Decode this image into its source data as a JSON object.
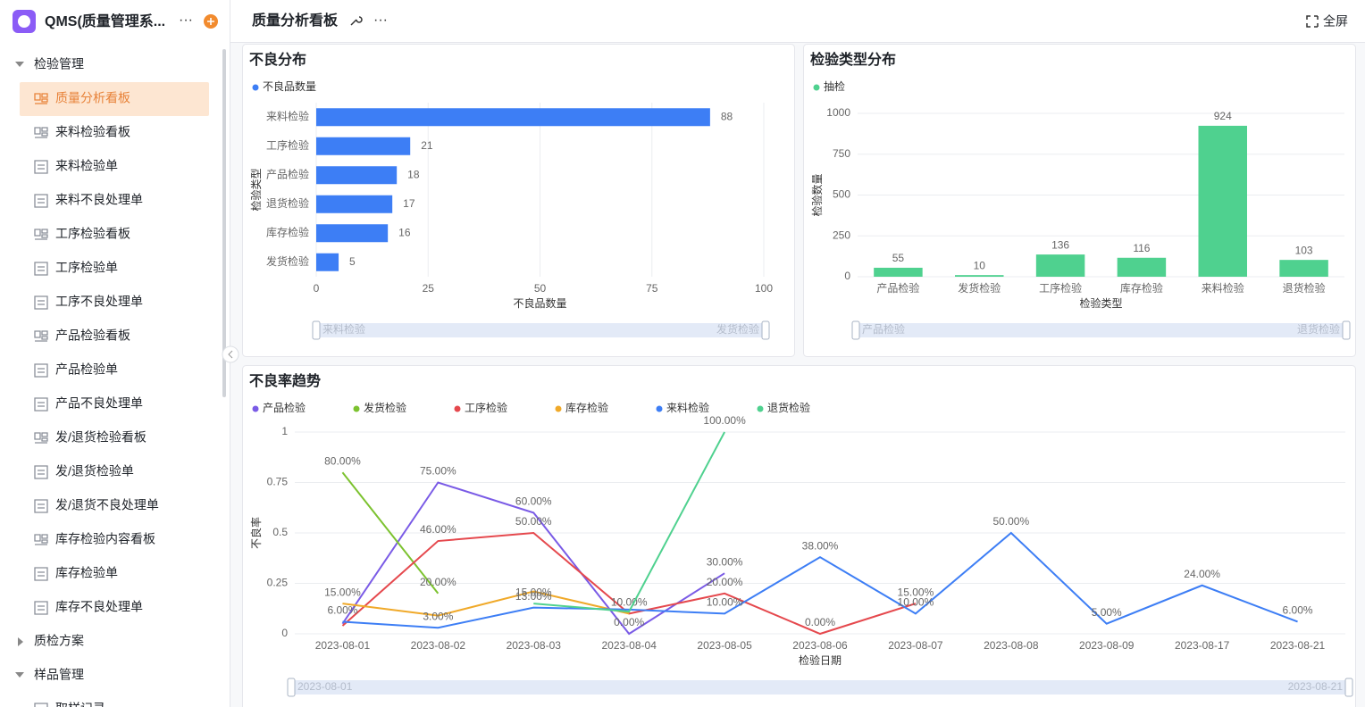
{
  "sidebar": {
    "app_title": "QMS(质量管理系...",
    "groups": [
      {
        "label": "检验管理",
        "items": [
          "质量分析看板",
          "来料检验看板",
          "来料检验单",
          "来料不良处理单",
          "工序检验看板",
          "工序检验单",
          "工序不良处理单",
          "产品检验看板",
          "产品检验单",
          "产品不良处理单",
          "发/退货检验看板",
          "发/退货检验单",
          "发/退货不良处理单",
          "库存检验内容看板",
          "库存检验单",
          "库存不良处理单"
        ]
      },
      {
        "label": "质检方案"
      },
      {
        "label": "样品管理",
        "items": [
          "取样记录"
        ]
      }
    ]
  },
  "header": {
    "title": "质量分析看板",
    "fullscreen": "全屏"
  },
  "chart_data": [
    {
      "type": "bar",
      "horizontal": true,
      "title": "不良分布",
      "categories": [
        "来料检验",
        "工序检验",
        "产品检验",
        "退货检验",
        "库存检验",
        "发货检验"
      ],
      "series": [
        {
          "name": "不良品数量",
          "color": "#3d7ef5",
          "values": [
            88,
            21,
            18,
            17,
            16,
            5
          ]
        }
      ],
      "xlim": [
        0,
        100
      ],
      "xticks": [
        0,
        25,
        50,
        75,
        100
      ],
      "xlabel": "不良品数量",
      "ylabel": "检验类型",
      "grid": true
    },
    {
      "type": "bar",
      "title": "检验类型分布",
      "categories": [
        "产品检验",
        "发货检验",
        "工序检验",
        "库存检验",
        "来料检验",
        "退货检验"
      ],
      "series": [
        {
          "name": "抽检",
          "color": "#4fd18f",
          "values": [
            55,
            10,
            136,
            116,
            924,
            103
          ]
        }
      ],
      "ylim": [
        0,
        1000
      ],
      "yticks": [
        0,
        250,
        500,
        750,
        1000
      ],
      "xlabel": "检验类型",
      "ylabel": "检验数量",
      "grid": true
    },
    {
      "type": "line",
      "title": "不良率趋势",
      "x": [
        "2023-08-01",
        "2023-08-02",
        "2023-08-03",
        "2023-08-04",
        "2023-08-05",
        "2023-08-06",
        "2023-08-07",
        "2023-08-08",
        "2023-08-09",
        "2023-08-17",
        "2023-08-21"
      ],
      "series": [
        {
          "name": "产品检验",
          "color": "#7a5be6",
          "values": [
            0.05,
            0.75,
            0.6,
            0,
            0.3,
            null,
            null,
            null,
            null,
            null,
            null
          ],
          "value_labels": [
            null,
            "75.00%",
            "60.00%",
            "0.00%",
            "30.00%",
            null,
            null,
            null,
            null,
            null,
            null
          ]
        },
        {
          "name": "发货检验",
          "color": "#7cc22f",
          "values": [
            0.8,
            0.2,
            null,
            null,
            null,
            null,
            null,
            null,
            null,
            null,
            null
          ],
          "value_labels": [
            "80.00%",
            "20.00%",
            null,
            null,
            null,
            null,
            null,
            null,
            null,
            null,
            null
          ]
        },
        {
          "name": "工序检验",
          "color": "#e5484d",
          "values": [
            0.04,
            0.46,
            0.5,
            0.1,
            0.2,
            0,
            0.15,
            null,
            null,
            null,
            null
          ],
          "value_labels": [
            null,
            "46.00%",
            "50.00%",
            null,
            "20.00%",
            "0.00%",
            "15.00%",
            null,
            null,
            null,
            null
          ]
        },
        {
          "name": "库存检验",
          "color": "#f0a929",
          "values": [
            0.15,
            0.09,
            0.21,
            0.1,
            null,
            null,
            null,
            null,
            null,
            null,
            null
          ],
          "value_labels": [
            "15.00%",
            null,
            null,
            "10.00%",
            null,
            null,
            null,
            null,
            null,
            null,
            null
          ]
        },
        {
          "name": "来料检验",
          "color": "#3d7ef5",
          "values": [
            0.06,
            0.03,
            0.13,
            0.12,
            0.1,
            0.38,
            0.1,
            0.5,
            0.05,
            0.24,
            0.06
          ],
          "value_labels": [
            "6.00%",
            "3.00%",
            "13.00%",
            null,
            "10.00%",
            "38.00%",
            "10.00%",
            "50.00%",
            "5.00%",
            "24.00%",
            "6.00%"
          ]
        },
        {
          "name": "退货检验",
          "color": "#4fd18f",
          "values": [
            null,
            null,
            0.15,
            0.11,
            1,
            null,
            null,
            null,
            null,
            null,
            null
          ],
          "value_labels": [
            null,
            null,
            "15.00%",
            null,
            "100.00%",
            null,
            null,
            null,
            null,
            null,
            null
          ]
        }
      ],
      "ylim": [
        0,
        1
      ],
      "yticks": [
        0,
        0.25,
        0.5,
        0.75,
        1
      ],
      "xlabel": "检验日期",
      "ylabel": "不良率",
      "grid": true
    }
  ]
}
